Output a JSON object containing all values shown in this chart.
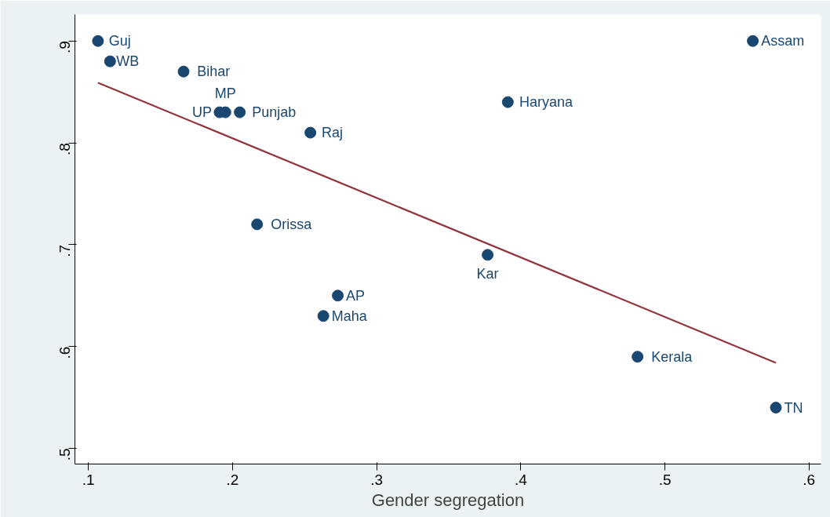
{
  "chart_data": {
    "type": "scatter",
    "xlabel": "Gender segregation",
    "marker": "circle",
    "grid": false,
    "xlim": [
      0.0906,
      0.6083
    ],
    "ylim": [
      0.4846,
      0.926
    ],
    "xticks": [
      {
        "value": 0.1,
        "label": ".1"
      },
      {
        "value": 0.2,
        "label": ".2"
      },
      {
        "value": 0.3,
        "label": ".3"
      },
      {
        "value": 0.4,
        "label": ".4"
      },
      {
        "value": 0.5,
        "label": ".5"
      },
      {
        "value": 0.6,
        "label": ".6"
      }
    ],
    "yticks": [
      {
        "value": 0.5,
        "label": ".5"
      },
      {
        "value": 0.6,
        "label": ".6"
      },
      {
        "value": 0.7,
        "label": ".7"
      },
      {
        "value": 0.8,
        "label": ".8"
      },
      {
        "value": 0.9,
        "label": ".9"
      }
    ],
    "series": [
      {
        "color": "#1a476f",
        "x": [
          0.1066,
          0.115,
          0.166,
          0.195,
          0.191,
          0.205,
          0.254,
          0.391,
          0.561,
          0.217,
          0.273,
          0.263,
          0.377,
          0.481,
          0.577
        ],
        "values": [
          0.9,
          0.88,
          0.87,
          0.83,
          0.83,
          0.83,
          0.81,
          0.84,
          0.9,
          0.72,
          0.65,
          0.63,
          0.69,
          0.59,
          0.54
        ]
      },
      {
        "type": "line",
        "marker": "none",
        "color": "#90353b",
        "x": [
          0.1066,
          0.577
        ],
        "values": [
          0.859,
          0.584
        ]
      }
    ],
    "annotations": [
      {
        "text": "Guj",
        "x": 0.1066,
        "y": 0.9
      },
      {
        "text": "WB",
        "x": 0.115,
        "y": 0.88
      },
      {
        "text": "Bihar",
        "x": 0.166,
        "y": 0.87
      },
      {
        "text": "MP",
        "x": 0.195,
        "y": 0.83
      },
      {
        "text": "UP",
        "x": 0.191,
        "y": 0.83
      },
      {
        "text": "Punjab",
        "x": 0.205,
        "y": 0.83
      },
      {
        "text": "Raj",
        "x": 0.254,
        "y": 0.81
      },
      {
        "text": "Haryana",
        "x": 0.391,
        "y": 0.84
      },
      {
        "text": "Assam",
        "x": 0.561,
        "y": 0.9
      },
      {
        "text": "Orissa",
        "x": 0.217,
        "y": 0.72
      },
      {
        "text": "AP",
        "x": 0.273,
        "y": 0.65
      },
      {
        "text": "Maha",
        "x": 0.263,
        "y": 0.63
      },
      {
        "text": "Kar",
        "x": 0.377,
        "y": 0.69
      },
      {
        "text": "Kerala",
        "x": 0.481,
        "y": 0.59
      },
      {
        "text": "TN",
        "x": 0.577,
        "y": 0.54
      }
    ]
  }
}
